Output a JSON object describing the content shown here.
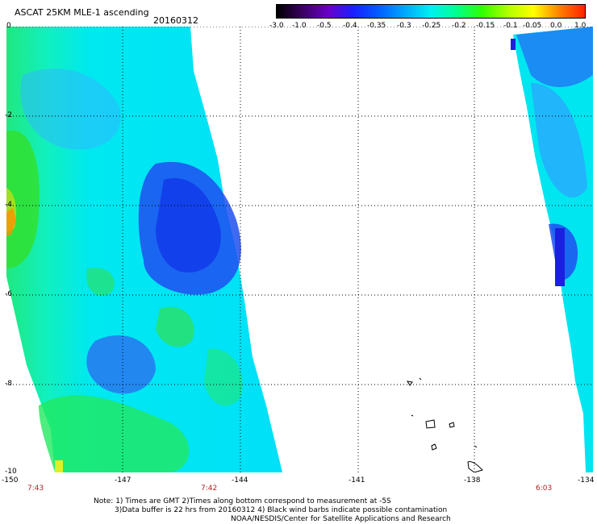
{
  "title": "ASCAT 25KM MLE-1 ascending",
  "date": "20160312",
  "colorbar": {
    "labels": [
      "-3.0",
      "-1.0",
      "-0.5",
      "-0.4",
      "-0.35",
      "-0.3",
      "-0.25",
      "-0.2",
      "-0.15",
      "-0.1",
      "-0.05",
      "0.0",
      "1.0"
    ],
    "colors": [
      "#000000",
      "#3a0060",
      "#6a00c8",
      "#1a20ff",
      "#0060ff",
      "#00a8ff",
      "#00f0f0",
      "#00ff90",
      "#30ff00",
      "#b0ff00",
      "#ffff00",
      "#ff8000",
      "#ff2000"
    ]
  },
  "axes": {
    "lat_labels": [
      "0",
      "-2",
      "-4",
      "-6",
      "-8",
      "-10"
    ],
    "lon_labels": [
      "-150",
      "-147",
      "-144",
      "-141",
      "-138",
      "-134"
    ]
  },
  "times": [
    "7:43",
    "7:42",
    "6:03"
  ],
  "notes": [
    "Note: 1) Times are GMT 2)Times along bottom correspond to measurement at -5S",
    "3)Data buffer is 22 hrs from 20160312 4) Black wind barbs indicate possible contamination",
    "NOAA/NESDIS/Center for Satellite Applications and Research"
  ]
}
